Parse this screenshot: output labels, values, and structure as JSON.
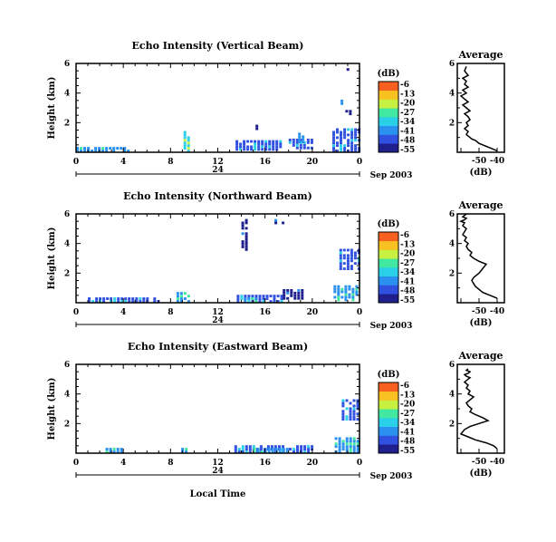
{
  "chart_data": [
    {
      "type": "heatmap",
      "title": "Echo Intensity (Vertical Beam)",
      "ylabel": "Height (km)",
      "xlabel": "",
      "xlim": [
        0,
        24
      ],
      "ylim": [
        0,
        6
      ],
      "x_ticks": [
        "0",
        "4",
        "8",
        "12",
        "16",
        "20",
        "0"
      ],
      "y_ticks": [
        "2",
        "4",
        "6"
      ],
      "x_sub_label": "24",
      "date_label": "Sep 2003",
      "colorbar": {
        "label": "(dB)",
        "ticks": [
          "-6",
          "-13",
          "-20",
          "-27",
          "-34",
          "-41",
          "-48",
          "-55"
        ],
        "range": [
          -58,
          -3
        ]
      },
      "echo_regions": [
        {
          "t0": 0.0,
          "t1": 4.6,
          "h0": 0.0,
          "h1": 0.2,
          "db": -41
        },
        {
          "t0": 9.1,
          "t1": 9.7,
          "h0": 0.0,
          "h1": 1.4,
          "db": -36
        },
        {
          "t0": 13.5,
          "t1": 17.2,
          "h0": 0.1,
          "h1": 0.8,
          "db": -50
        },
        {
          "t0": 15.2,
          "t1": 15.5,
          "h0": 1.5,
          "h1": 1.8,
          "db": -52
        },
        {
          "t0": 18.0,
          "t1": 20.0,
          "h0": 0.2,
          "h1": 0.8,
          "db": -48
        },
        {
          "t0": 18.8,
          "t1": 19.4,
          "h0": 0.6,
          "h1": 1.2,
          "db": -38
        },
        {
          "t0": 21.7,
          "t1": 23.9,
          "h0": 0.0,
          "h1": 1.6,
          "db": -45
        },
        {
          "t0": 22.8,
          "t1": 23.4,
          "h0": 2.5,
          "h1": 2.7,
          "db": -53
        },
        {
          "t0": 22.4,
          "t1": 22.6,
          "h0": 3.2,
          "h1": 3.5,
          "db": -52
        },
        {
          "t0": 22.9,
          "t1": 23.1,
          "h0": 5.5,
          "h1": 5.7,
          "db": -52
        }
      ],
      "average_profile": {
        "title": "Average",
        "xlabel": "(dB)",
        "xlim": [
          -62,
          -36
        ],
        "ylim": [
          0,
          6
        ],
        "x_ticks": [
          "-50",
          "-40"
        ],
        "y_ticks": [
          "2",
          "4",
          "6"
        ],
        "x": [
          -40,
          -44,
          -46,
          -48,
          -50,
          -52,
          -54,
          -55,
          -57,
          -56,
          -58,
          -56,
          -57,
          -55,
          -56,
          -58,
          -55,
          -57,
          -59,
          -56,
          -58,
          -60,
          -57,
          -59,
          -56,
          -58,
          -57,
          -59,
          -56,
          -58,
          -57
        ],
        "y": [
          0.1,
          0.3,
          0.4,
          0.5,
          0.6,
          0.8,
          0.9,
          1.0,
          1.2,
          1.4,
          1.6,
          1.8,
          2.0,
          2.2,
          2.4,
          2.6,
          2.8,
          3.0,
          3.2,
          3.4,
          3.6,
          3.8,
          4.0,
          4.2,
          4.4,
          4.6,
          4.8,
          5.0,
          5.2,
          5.5,
          5.8
        ]
      }
    },
    {
      "type": "heatmap",
      "title": "Echo Intensity (Northward Beam)",
      "ylabel": "Height (km)",
      "xlabel": "",
      "xlim": [
        0,
        24
      ],
      "ylim": [
        0,
        6
      ],
      "x_ticks": [
        "0",
        "4",
        "8",
        "12",
        "16",
        "20",
        "0"
      ],
      "y_ticks": [
        "2",
        "4",
        "6"
      ],
      "x_sub_label": "24",
      "date_label": "Sep 2003",
      "colorbar": {
        "label": "(dB)",
        "ticks": [
          "-6",
          "-13",
          "-20",
          "-27",
          "-34",
          "-41",
          "-48",
          "-55"
        ],
        "range": [
          -58,
          -3
        ]
      },
      "echo_regions": [
        {
          "t0": 1.0,
          "t1": 7.0,
          "h0": 0.0,
          "h1": 0.2,
          "db": -50
        },
        {
          "t0": 8.5,
          "t1": 9.5,
          "h0": 0.0,
          "h1": 0.6,
          "db": -38
        },
        {
          "t0": 9.2,
          "t1": 9.4,
          "h0": 1.9,
          "h1": 2.2,
          "db": -52
        },
        {
          "t0": 13.6,
          "t1": 17.5,
          "h0": 0.0,
          "h1": 0.4,
          "db": -50
        },
        {
          "t0": 14.2,
          "t1": 15.2,
          "h0": 0.0,
          "h1": 0.3,
          "db": -38
        },
        {
          "t0": 14.0,
          "t1": 14.6,
          "h0": 3.5,
          "h1": 5.5,
          "db": -52
        },
        {
          "t0": 16.8,
          "t1": 17.6,
          "h0": 5.3,
          "h1": 5.5,
          "db": -52
        },
        {
          "t0": 17.5,
          "t1": 19.3,
          "h0": 0.2,
          "h1": 0.8,
          "db": -52
        },
        {
          "t0": 21.8,
          "t1": 23.9,
          "h0": 0.1,
          "h1": 1.1,
          "db": -40
        },
        {
          "t0": 22.3,
          "t1": 23.9,
          "h0": 2.2,
          "h1": 3.5,
          "db": -50
        }
      ],
      "average_profile": {
        "title": "Average",
        "xlabel": "(dB)",
        "xlim": [
          -62,
          -36
        ],
        "ylim": [
          0,
          6
        ],
        "x_ticks": [
          "-50",
          "-40"
        ],
        "y_ticks": [
          "2",
          "4",
          "6"
        ],
        "x": [
          -40,
          -44,
          -48,
          -50,
          -52,
          -53,
          -54,
          -53,
          -50,
          -48,
          -46,
          -50,
          -53,
          -55,
          -54,
          -56,
          -57,
          -56,
          -58,
          -57,
          -59,
          -58,
          -57,
          -59,
          -58,
          -60,
          -58,
          -57,
          -59,
          -58,
          -57
        ],
        "y": [
          0.3,
          0.5,
          0.7,
          0.9,
          1.1,
          1.3,
          1.5,
          1.7,
          2.0,
          2.3,
          2.6,
          2.8,
          3.0,
          3.2,
          3.4,
          3.6,
          3.8,
          4.0,
          4.2,
          4.4,
          4.6,
          4.8,
          5.0,
          5.2,
          5.4,
          5.5,
          5.6,
          5.7,
          5.8,
          5.9,
          6.0
        ]
      }
    },
    {
      "type": "heatmap",
      "title": "Echo Intensity (Eastward Beam)",
      "ylabel": "Height (km)",
      "xlabel": "Local Time",
      "xlim": [
        0,
        24
      ],
      "ylim": [
        0,
        6
      ],
      "x_ticks": [
        "0",
        "4",
        "8",
        "12",
        "16",
        "20",
        "0"
      ],
      "y_ticks": [
        "2",
        "4",
        "6"
      ],
      "x_sub_label": "24",
      "date_label": "Sep 2003",
      "colorbar": {
        "label": "(dB)",
        "ticks": [
          "-6",
          "-13",
          "-20",
          "-27",
          "-34",
          "-41",
          "-48",
          "-55"
        ],
        "range": [
          -58,
          -3
        ]
      },
      "echo_regions": [
        {
          "t0": 2.5,
          "t1": 4.0,
          "h0": 0.0,
          "h1": 0.2,
          "db": -38
        },
        {
          "t0": 8.9,
          "t1": 9.3,
          "h0": 0.0,
          "h1": 0.3,
          "db": -38
        },
        {
          "t0": 13.4,
          "t1": 20.0,
          "h0": 0.0,
          "h1": 0.5,
          "db": -50
        },
        {
          "t0": 15.0,
          "t1": 18.0,
          "h0": 0.0,
          "h1": 0.2,
          "db": -40
        },
        {
          "t0": 21.9,
          "t1": 23.9,
          "h0": 0.0,
          "h1": 1.0,
          "db": -42
        },
        {
          "t0": 22.5,
          "t1": 23.9,
          "h0": 2.2,
          "h1": 3.6,
          "db": -50
        }
      ],
      "average_profile": {
        "title": "Average",
        "xlabel": "(dB)",
        "xlim": [
          -62,
          -36
        ],
        "ylim": [
          0,
          6
        ],
        "x_ticks": [
          "-50",
          "-40"
        ],
        "y_ticks": [
          "2",
          "4",
          "6"
        ],
        "x": [
          -40,
          -42,
          -46,
          -52,
          -56,
          -60,
          -58,
          -55,
          -50,
          -45,
          -48,
          -52,
          -55,
          -54,
          -56,
          -57,
          -55,
          -53,
          -56,
          -55,
          -57,
          -56,
          -58,
          -56,
          -55,
          -57,
          -58,
          -56,
          -55,
          -57,
          -56
        ],
        "y": [
          0.3,
          0.5,
          0.7,
          0.9,
          1.1,
          1.3,
          1.6,
          1.8,
          2.0,
          2.2,
          2.4,
          2.6,
          2.8,
          3.0,
          3.2,
          3.4,
          3.6,
          3.8,
          4.0,
          4.2,
          4.4,
          4.6,
          4.8,
          5.0,
          5.1,
          5.2,
          5.3,
          5.4,
          5.5,
          5.6,
          5.7
        ]
      }
    }
  ],
  "colors": {
    "colormap": [
      "#1e1e8c",
      "#3050e0",
      "#2a90f0",
      "#2ad0e8",
      "#40e8a0",
      "#c8f040",
      "#f8c020",
      "#f86020",
      "#e01818"
    ]
  }
}
